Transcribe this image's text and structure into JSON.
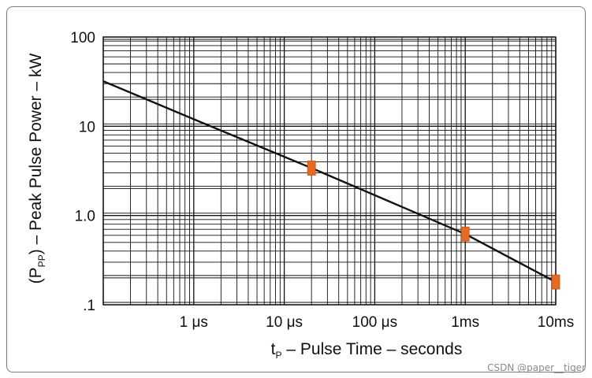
{
  "chart_data": {
    "type": "line",
    "title": "",
    "xscale": "log",
    "yscale": "log",
    "xlim_seconds": [
      1e-07,
      0.01
    ],
    "ylim_kw": [
      0.1,
      100
    ],
    "x_ticks": [
      {
        "value": 1e-06,
        "label": "1 μs"
      },
      {
        "value": 1e-05,
        "label": "10 μs"
      },
      {
        "value": 0.0001,
        "label": "100 μs"
      },
      {
        "value": 0.001,
        "label": "1ms"
      },
      {
        "value": 0.01,
        "label": "10ms"
      }
    ],
    "y_ticks": [
      {
        "value": 100,
        "label": "100"
      },
      {
        "value": 10,
        "label": "10"
      },
      {
        "value": 1,
        "label": "1.0"
      },
      {
        "value": 0.1,
        "label": ".1"
      }
    ],
    "xlabel": {
      "main": "t",
      "sub": "P",
      "rest": " – Pulse Time – seconds"
    },
    "ylabel": {
      "open": "(P",
      "sub": "PP",
      "rest": ") – Peak Pulse Power – kW"
    },
    "series": [
      {
        "name": "Peak Pulse Power",
        "x": [
          1e-07,
          1e-06,
          2e-05,
          0.001,
          0.01
        ],
        "y": [
          32,
          12,
          3.4,
          0.62,
          0.18
        ]
      }
    ],
    "markers": [
      {
        "x": 2e-05,
        "y": 3.4
      },
      {
        "x": 0.001,
        "y": 0.62
      },
      {
        "x": 0.01,
        "y": 0.18
      }
    ],
    "grid": true,
    "colors": {
      "line": "#111111",
      "grid": "#111111",
      "marker": "#e86a1e"
    }
  },
  "watermark": "CSDN @paper__tiger"
}
